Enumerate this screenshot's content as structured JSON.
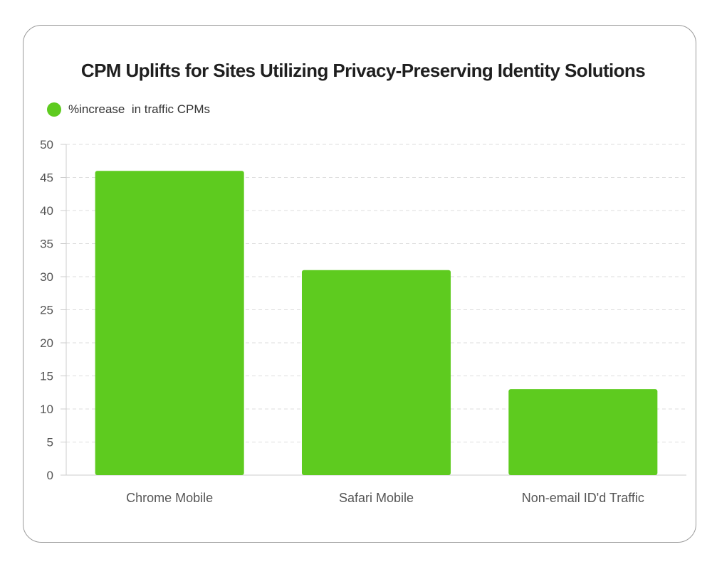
{
  "colors": {
    "bar": "#5ecb1f",
    "grid": "#dddddd",
    "axis": "#cccccc"
  },
  "legend": {
    "label": "%increase  in traffic CPMs"
  },
  "chart_data": {
    "type": "bar",
    "title": "CPM Uplifts for Sites Utilizing Privacy-Preserving Identity Solutions",
    "categories": [
      "Chrome Mobile",
      "Safari Mobile",
      "Non-email ID'd Traffic"
    ],
    "series": [
      {
        "name": "%increase  in traffic CPMs",
        "values": [
          46,
          31,
          13
        ]
      }
    ],
    "xlabel": "",
    "ylabel": "",
    "ylim": [
      0,
      50
    ],
    "yticks": [
      0,
      5,
      10,
      15,
      20,
      25,
      30,
      35,
      40,
      45,
      50
    ],
    "grid": true,
    "legend_position": "top-left"
  }
}
